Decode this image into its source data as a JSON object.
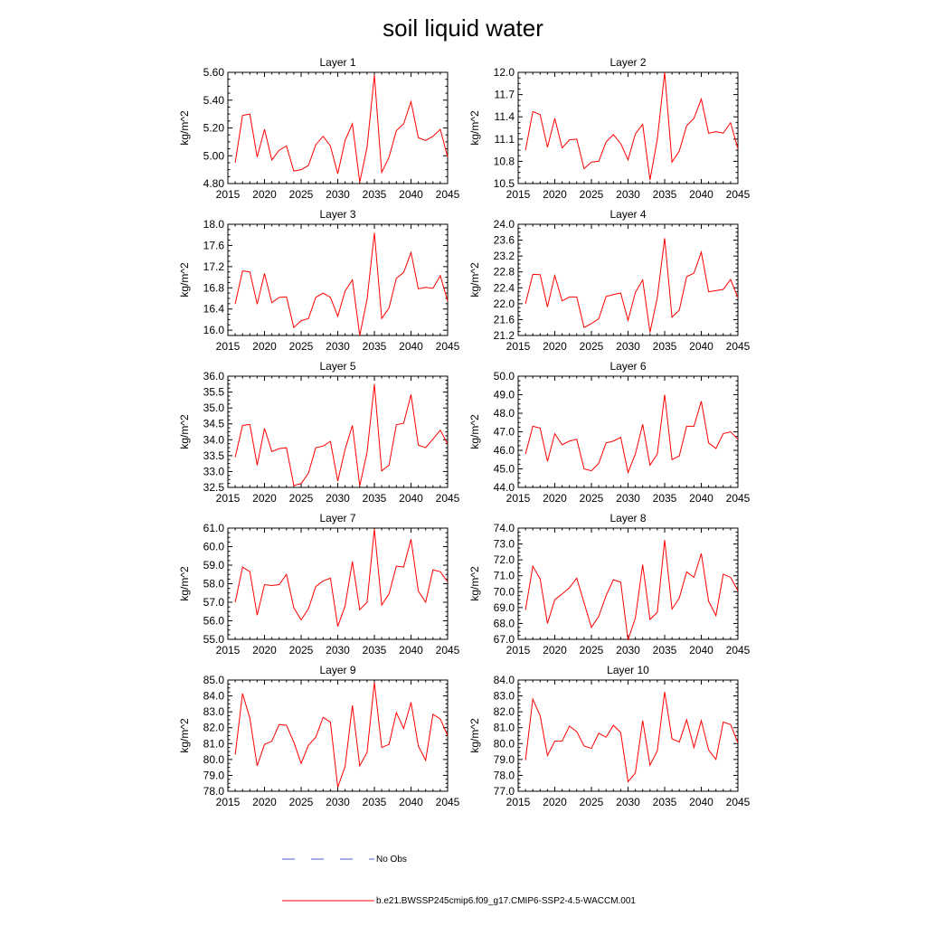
{
  "title": "soil liquid water",
  "legend": {
    "obs_label": "No Obs",
    "model_label": "b.e21.BWSSP245cmip6.f09_g17.CMIP6-SSP2-4.5-WACCM.001",
    "obs_color": "#4b5bd4",
    "model_color": "#ff0000"
  },
  "chart_data": [
    {
      "type": "line",
      "title": "Layer 1",
      "xlabel": "",
      "ylabel": "kg/m^2",
      "xlim": [
        2015,
        2045
      ],
      "ylim": [
        4.8,
        5.6
      ],
      "xticks": [
        2015,
        2020,
        2025,
        2030,
        2035,
        2040,
        2045
      ],
      "yticks": [
        "4.80",
        "5.00",
        "5.20",
        "5.40",
        "5.60"
      ],
      "x": [
        2016,
        2017,
        2018,
        2019,
        2020,
        2021,
        2022,
        2023,
        2024,
        2025,
        2026,
        2027,
        2028,
        2029,
        2030,
        2031,
        2032,
        2033,
        2034,
        2035,
        2036,
        2037,
        2038,
        2039,
        2040,
        2041,
        2042,
        2043,
        2044,
        2045
      ],
      "values": [
        4.95,
        5.29,
        5.3,
        4.99,
        5.19,
        4.97,
        5.04,
        5.07,
        4.89,
        4.9,
        4.93,
        5.08,
        5.14,
        5.07,
        4.87,
        5.11,
        5.23,
        4.81,
        5.06,
        5.58,
        4.88,
        4.99,
        5.18,
        5.23,
        5.39,
        5.13,
        5.11,
        5.14,
        5.19,
        4.99
      ]
    },
    {
      "type": "line",
      "title": "Layer 2",
      "xlabel": "",
      "ylabel": "kg/m^2",
      "xlim": [
        2015,
        2045
      ],
      "ylim": [
        10.5,
        12.0
      ],
      "xticks": [
        2015,
        2020,
        2025,
        2030,
        2035,
        2040,
        2045
      ],
      "yticks": [
        "10.5",
        "10.8",
        "11.1",
        "11.4",
        "11.7",
        "12.0"
      ],
      "x": [
        2016,
        2017,
        2018,
        2019,
        2020,
        2021,
        2022,
        2023,
        2024,
        2025,
        2026,
        2027,
        2028,
        2029,
        2030,
        2031,
        2032,
        2033,
        2034,
        2035,
        2036,
        2037,
        2038,
        2039,
        2040,
        2041,
        2042,
        2043,
        2044,
        2045
      ],
      "values": [
        10.95,
        11.47,
        11.43,
        10.99,
        11.38,
        10.98,
        11.09,
        11.1,
        10.7,
        10.79,
        10.8,
        11.06,
        11.16,
        11.04,
        10.82,
        11.17,
        11.3,
        10.55,
        11.1,
        12.0,
        10.79,
        10.94,
        11.28,
        11.38,
        11.64,
        11.18,
        11.2,
        11.18,
        11.32,
        10.97
      ]
    },
    {
      "type": "line",
      "title": "Layer 3",
      "xlabel": "",
      "ylabel": "kg/m^2",
      "xlim": [
        2015,
        2045
      ],
      "ylim": [
        15.9,
        18.0
      ],
      "xticks": [
        2015,
        2020,
        2025,
        2030,
        2035,
        2040,
        2045
      ],
      "yticks": [
        "16.0",
        "16.4",
        "16.8",
        "17.2",
        "17.6",
        "18.0"
      ],
      "x": [
        2016,
        2017,
        2018,
        2019,
        2020,
        2021,
        2022,
        2023,
        2024,
        2025,
        2026,
        2027,
        2028,
        2029,
        2030,
        2031,
        2032,
        2033,
        2034,
        2035,
        2036,
        2037,
        2038,
        2039,
        2040,
        2041,
        2042,
        2043,
        2044,
        2045
      ],
      "values": [
        16.5,
        17.12,
        17.1,
        16.49,
        17.07,
        16.52,
        16.62,
        16.63,
        16.05,
        16.18,
        16.22,
        16.62,
        16.7,
        16.62,
        16.26,
        16.74,
        16.95,
        15.9,
        16.58,
        17.84,
        16.22,
        16.42,
        16.98,
        17.09,
        17.47,
        16.78,
        16.81,
        16.79,
        17.03,
        16.55
      ]
    },
    {
      "type": "line",
      "title": "Layer 4",
      "xlabel": "",
      "ylabel": "kg/m^2",
      "xlim": [
        2015,
        2045
      ],
      "ylim": [
        21.2,
        24.0
      ],
      "xticks": [
        2015,
        2020,
        2025,
        2030,
        2035,
        2040,
        2045
      ],
      "yticks": [
        "21.2",
        "21.6",
        "22.0",
        "22.4",
        "22.8",
        "23.2",
        "23.6",
        "24.0"
      ],
      "x": [
        2016,
        2017,
        2018,
        2019,
        2020,
        2021,
        2022,
        2023,
        2024,
        2025,
        2026,
        2027,
        2028,
        2029,
        2030,
        2031,
        2032,
        2033,
        2034,
        2035,
        2036,
        2037,
        2038,
        2039,
        2040,
        2041,
        2042,
        2043,
        2044,
        2045
      ],
      "values": [
        22.0,
        22.74,
        22.73,
        21.92,
        22.71,
        22.07,
        22.17,
        22.17,
        21.4,
        21.5,
        21.62,
        22.18,
        22.23,
        22.27,
        21.58,
        22.28,
        22.6,
        21.28,
        22.16,
        23.65,
        21.66,
        21.84,
        22.68,
        22.77,
        23.3,
        22.3,
        22.33,
        22.36,
        22.61,
        22.15
      ]
    },
    {
      "type": "line",
      "title": "Layer 5",
      "xlabel": "",
      "ylabel": "kg/m^2",
      "xlim": [
        2015,
        2045
      ],
      "ylim": [
        32.5,
        36.0
      ],
      "xticks": [
        2015,
        2020,
        2025,
        2030,
        2035,
        2040,
        2045
      ],
      "yticks": [
        "32.5",
        "33.0",
        "33.5",
        "34.0",
        "34.5",
        "35.0",
        "35.5",
        "36.0"
      ],
      "x": [
        2016,
        2017,
        2018,
        2019,
        2020,
        2021,
        2022,
        2023,
        2024,
        2025,
        2026,
        2027,
        2028,
        2029,
        2030,
        2031,
        2032,
        2033,
        2034,
        2035,
        2036,
        2037,
        2038,
        2039,
        2040,
        2041,
        2042,
        2043,
        2044,
        2045
      ],
      "values": [
        33.45,
        34.45,
        34.48,
        33.2,
        34.36,
        33.63,
        33.72,
        33.75,
        32.56,
        32.62,
        32.95,
        33.75,
        33.8,
        33.95,
        32.7,
        33.7,
        34.45,
        32.55,
        33.6,
        35.75,
        33.02,
        33.2,
        34.47,
        34.52,
        35.42,
        33.83,
        33.75,
        34.02,
        34.3,
        33.87
      ]
    },
    {
      "type": "line",
      "title": "Layer 6",
      "xlabel": "",
      "ylabel": "kg/m^2",
      "xlim": [
        2015,
        2045
      ],
      "ylim": [
        44.0,
        50.0
      ],
      "xticks": [
        2015,
        2020,
        2025,
        2030,
        2035,
        2040,
        2045
      ],
      "yticks": [
        "44.0",
        "45.0",
        "46.0",
        "47.0",
        "48.0",
        "49.0",
        "50.0"
      ],
      "x": [
        2016,
        2017,
        2018,
        2019,
        2020,
        2021,
        2022,
        2023,
        2024,
        2025,
        2026,
        2027,
        2028,
        2029,
        2030,
        2031,
        2032,
        2033,
        2034,
        2035,
        2036,
        2037,
        2038,
        2039,
        2040,
        2041,
        2042,
        2043,
        2044,
        2045
      ],
      "values": [
        45.8,
        47.3,
        47.2,
        45.4,
        46.9,
        46.3,
        46.5,
        46.6,
        45.0,
        44.9,
        45.3,
        46.4,
        46.5,
        46.7,
        44.8,
        45.8,
        47.4,
        45.2,
        45.8,
        49.0,
        45.5,
        45.7,
        47.3,
        47.3,
        48.65,
        46.4,
        46.1,
        46.9,
        47.0,
        46.6
      ]
    },
    {
      "type": "line",
      "title": "Layer 7",
      "xlabel": "",
      "ylabel": "kg/m^2",
      "xlim": [
        2015,
        2045
      ],
      "ylim": [
        55.0,
        61.0
      ],
      "xticks": [
        2015,
        2020,
        2025,
        2030,
        2035,
        2040,
        2045
      ],
      "yticks": [
        "55.0",
        "56.0",
        "57.0",
        "58.0",
        "59.0",
        "60.0",
        "61.0"
      ],
      "x": [
        2016,
        2017,
        2018,
        2019,
        2020,
        2021,
        2022,
        2023,
        2024,
        2025,
        2026,
        2027,
        2028,
        2029,
        2030,
        2031,
        2032,
        2033,
        2034,
        2035,
        2036,
        2037,
        2038,
        2039,
        2040,
        2041,
        2042,
        2043,
        2044,
        2045
      ],
      "values": [
        57.0,
        58.9,
        58.65,
        56.3,
        57.95,
        57.9,
        57.95,
        58.5,
        56.7,
        56.05,
        56.65,
        57.85,
        58.15,
        58.3,
        55.7,
        56.8,
        59.2,
        56.6,
        57.0,
        60.95,
        56.85,
        57.45,
        58.95,
        58.9,
        60.4,
        57.6,
        57.0,
        58.75,
        58.65,
        58.1
      ]
    },
    {
      "type": "line",
      "title": "Layer 8",
      "xlabel": "",
      "ylabel": "kg/m^2",
      "xlim": [
        2015,
        2045
      ],
      "ylim": [
        67.0,
        74.0
      ],
      "xticks": [
        2015,
        2020,
        2025,
        2030,
        2035,
        2040,
        2045
      ],
      "yticks": [
        "67.0",
        "68.0",
        "69.0",
        "70.0",
        "71.0",
        "72.0",
        "73.0",
        "74.0"
      ],
      "x": [
        2016,
        2017,
        2018,
        2019,
        2020,
        2021,
        2022,
        2023,
        2024,
        2025,
        2026,
        2027,
        2028,
        2029,
        2030,
        2031,
        2032,
        2033,
        2034,
        2035,
        2036,
        2037,
        2038,
        2039,
        2040,
        2041,
        2042,
        2043,
        2044,
        2045
      ],
      "values": [
        68.85,
        71.6,
        70.8,
        68.0,
        69.5,
        69.85,
        70.25,
        70.85,
        69.3,
        67.75,
        68.45,
        69.75,
        70.75,
        70.6,
        66.95,
        68.35,
        71.7,
        68.25,
        68.7,
        73.25,
        68.9,
        69.6,
        71.25,
        70.9,
        72.4,
        69.4,
        68.5,
        71.1,
        70.9,
        70.05
      ]
    },
    {
      "type": "line",
      "title": "Layer 9",
      "xlabel": "",
      "ylabel": "kg/m^2",
      "xlim": [
        2015,
        2045
      ],
      "ylim": [
        78.0,
        85.0
      ],
      "xticks": [
        2015,
        2020,
        2025,
        2030,
        2035,
        2040,
        2045
      ],
      "yticks": [
        "78.0",
        "79.0",
        "80.0",
        "81.0",
        "82.0",
        "83.0",
        "84.0",
        "85.0"
      ],
      "x": [
        2016,
        2017,
        2018,
        2019,
        2020,
        2021,
        2022,
        2023,
        2024,
        2025,
        2026,
        2027,
        2028,
        2029,
        2030,
        2031,
        2032,
        2033,
        2034,
        2035,
        2036,
        2037,
        2038,
        2039,
        2040,
        2041,
        2042,
        2043,
        2044,
        2045
      ],
      "values": [
        80.3,
        84.15,
        82.6,
        79.6,
        80.95,
        81.15,
        82.2,
        82.15,
        81.1,
        79.75,
        80.9,
        81.4,
        82.65,
        82.35,
        78.25,
        79.55,
        83.4,
        79.6,
        80.45,
        84.85,
        80.75,
        80.95,
        82.95,
        81.95,
        83.6,
        80.85,
        79.95,
        82.85,
        82.55,
        81.5
      ]
    },
    {
      "type": "line",
      "title": "Layer 10",
      "xlabel": "",
      "ylabel": "kg/m^2",
      "xlim": [
        2015,
        2045
      ],
      "ylim": [
        77.0,
        84.0
      ],
      "xticks": [
        2015,
        2020,
        2025,
        2030,
        2035,
        2040,
        2045
      ],
      "yticks": [
        "77.0",
        "78.0",
        "79.0",
        "80.0",
        "81.0",
        "82.0",
        "83.0",
        "84.0"
      ],
      "x": [
        2016,
        2017,
        2018,
        2019,
        2020,
        2021,
        2022,
        2023,
        2024,
        2025,
        2026,
        2027,
        2028,
        2029,
        2030,
        2031,
        2032,
        2033,
        2034,
        2035,
        2036,
        2037,
        2038,
        2039,
        2040,
        2041,
        2042,
        2043,
        2044,
        2045
      ],
      "values": [
        78.95,
        82.8,
        81.75,
        79.25,
        80.15,
        80.15,
        81.1,
        80.75,
        79.85,
        79.7,
        80.65,
        80.4,
        81.15,
        80.7,
        77.6,
        78.15,
        81.45,
        78.65,
        79.55,
        83.25,
        80.3,
        80.1,
        81.5,
        79.75,
        81.45,
        79.6,
        79.0,
        81.35,
        81.2,
        80.05
      ]
    }
  ]
}
